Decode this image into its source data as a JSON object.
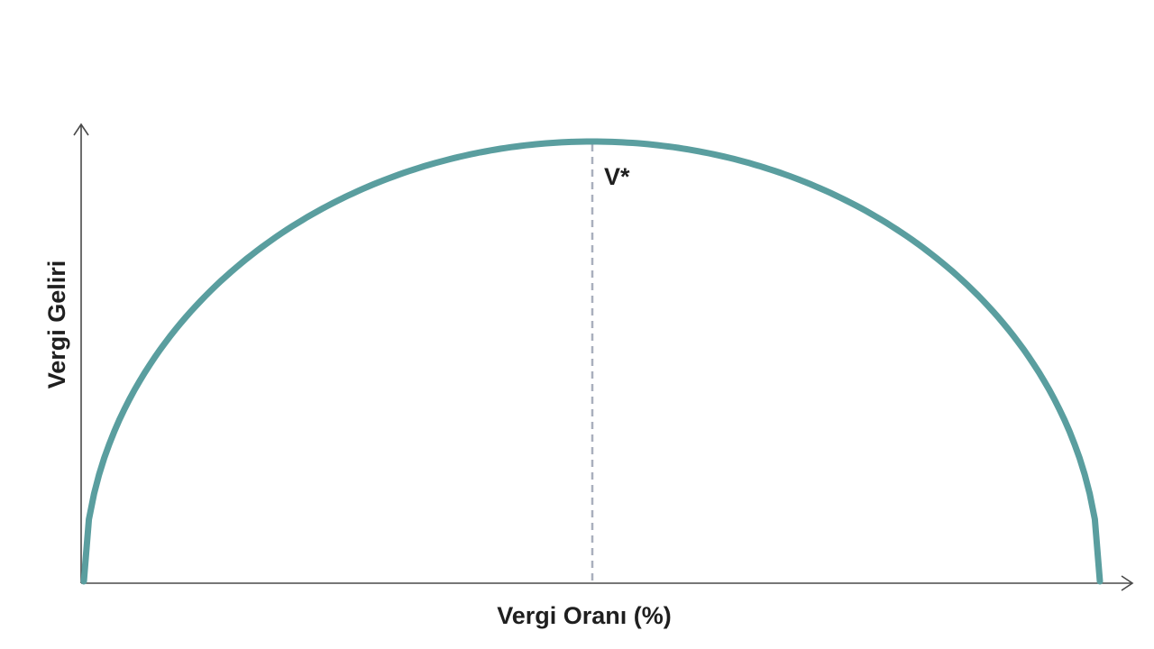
{
  "diagram": {
    "y_axis_label": "Vergi Geliri",
    "x_axis_label": "Vergi Oranı (%)",
    "peak_label": "V*",
    "curve_color": "#5a9e9f",
    "axis_color": "#4a4a4a",
    "guide_color": "#a9afbd"
  }
}
